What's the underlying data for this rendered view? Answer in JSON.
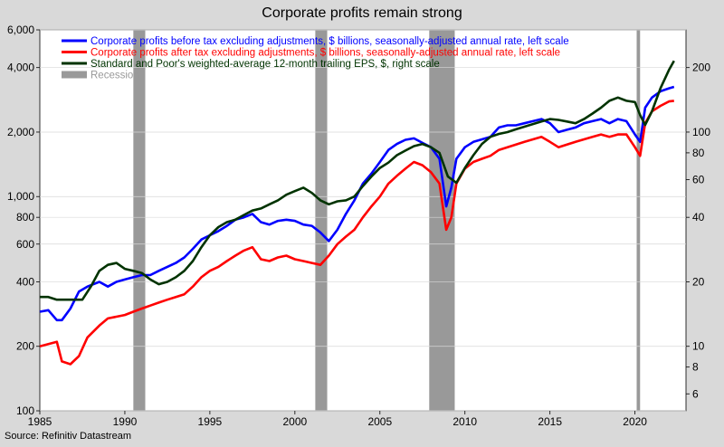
{
  "chart_data": {
    "type": "line",
    "title": "Corporate profits remain strong",
    "source": "Source: Refinitiv Datastream",
    "xlim": [
      1985,
      2023
    ],
    "x_ticks": [
      1985,
      1990,
      1995,
      2000,
      2005,
      2010,
      2015,
      2020
    ],
    "left_axis": {
      "scale": "log",
      "ylim": [
        100,
        6000
      ],
      "ticks": [
        100,
        200,
        400,
        600,
        800,
        1000,
        2000,
        4000,
        6000
      ],
      "tick_labels": [
        "100",
        "200",
        "400",
        "600",
        "800",
        "1,000",
        "2,000",
        "4,000",
        "6,000"
      ]
    },
    "right_axis": {
      "scale": "log",
      "ylim": [
        5,
        300
      ],
      "ticks": [
        6,
        8,
        10,
        20,
        40,
        60,
        80,
        100,
        200
      ],
      "tick_labels": [
        "6",
        "8",
        "10",
        "20",
        "40",
        "60",
        "80",
        "100",
        "200"
      ]
    },
    "recessions": [
      {
        "start": 1990.5,
        "end": 1991.2
      },
      {
        "start": 2001.2,
        "end": 2001.9
      },
      {
        "start": 2007.9,
        "end": 2009.4
      },
      {
        "start": 2020.1,
        "end": 2020.3
      }
    ],
    "series": [
      {
        "name": "Corporate profits before tax excluding adjustments, $ billions, seasonally-adjusted annual rate, left scale",
        "color": "#0000ff",
        "axis": "left",
        "x": [
          1985,
          1985.5,
          1986,
          1986.3,
          1986.8,
          1987.3,
          1987.8,
          1988.5,
          1989,
          1989.5,
          1990,
          1990.5,
          1991,
          1991.5,
          1992,
          1992.5,
          1993,
          1993.5,
          1994,
          1994.5,
          1995,
          1995.5,
          1996,
          1996.5,
          1997,
          1997.5,
          1998,
          1998.5,
          1999,
          1999.5,
          2000,
          2000.5,
          2001,
          2001.5,
          2002,
          2002.5,
          2003,
          2003.5,
          2004,
          2004.5,
          2005,
          2005.5,
          2006,
          2006.5,
          2007,
          2007.5,
          2008,
          2008.5,
          2008.9,
          2009.2,
          2009.5,
          2010,
          2010.5,
          2011,
          2011.5,
          2012,
          2012.5,
          2013,
          2013.5,
          2014,
          2014.5,
          2015,
          2015.5,
          2016,
          2016.5,
          2017,
          2017.5,
          2018,
          2018.5,
          2019,
          2019.5,
          2020,
          2020.3,
          2020.6,
          2021,
          2021.5,
          2022,
          2022.3
        ],
        "values": [
          290,
          295,
          265,
          265,
          300,
          360,
          380,
          400,
          380,
          400,
          410,
          420,
          430,
          430,
          450,
          470,
          490,
          520,
          570,
          630,
          660,
          690,
          730,
          780,
          800,
          830,
          760,
          740,
          770,
          780,
          770,
          740,
          730,
          680,
          620,
          700,
          830,
          960,
          1150,
          1280,
          1450,
          1650,
          1760,
          1840,
          1870,
          1780,
          1700,
          1500,
          900,
          1100,
          1500,
          1700,
          1800,
          1850,
          1900,
          2100,
          2150,
          2150,
          2200,
          2250,
          2300,
          2200,
          2000,
          2050,
          2100,
          2200,
          2250,
          2300,
          2200,
          2300,
          2250,
          1950,
          1800,
          2600,
          2900,
          3100,
          3200,
          3250
        ]
      },
      {
        "name": "Corporate profits after tax excluding adjustments, $ billions, seasonally-adjusted annual rate, left scale",
        "color": "#ff0000",
        "axis": "left",
        "x": [
          1985,
          1985.5,
          1986,
          1986.3,
          1986.8,
          1987.3,
          1987.8,
          1988.5,
          1989,
          1989.5,
          1990,
          1990.5,
          1991,
          1991.5,
          1992,
          1992.5,
          1993,
          1993.5,
          1994,
          1994.5,
          1995,
          1995.5,
          1996,
          1996.5,
          1997,
          1997.5,
          1998,
          1998.5,
          1999,
          1999.5,
          2000,
          2000.5,
          2001,
          2001.5,
          2002,
          2002.5,
          2003,
          2003.5,
          2004,
          2004.5,
          2005,
          2005.5,
          2006,
          2006.5,
          2007,
          2007.5,
          2008,
          2008.5,
          2008.9,
          2009.2,
          2009.5,
          2010,
          2010.5,
          2011,
          2011.5,
          2012,
          2012.5,
          2013,
          2013.5,
          2014,
          2014.5,
          2015,
          2015.5,
          2016,
          2016.5,
          2017,
          2017.5,
          2018,
          2018.5,
          2019,
          2019.5,
          2020,
          2020.3,
          2020.6,
          2021,
          2021.5,
          2022,
          2022.3
        ],
        "values": [
          200,
          205,
          210,
          170,
          165,
          180,
          220,
          250,
          270,
          275,
          280,
          290,
          300,
          310,
          320,
          330,
          340,
          350,
          380,
          420,
          450,
          470,
          500,
          530,
          560,
          580,
          510,
          500,
          520,
          530,
          510,
          500,
          490,
          480,
          530,
          600,
          650,
          700,
          800,
          900,
          1000,
          1150,
          1250,
          1350,
          1450,
          1400,
          1300,
          1150,
          700,
          800,
          1150,
          1350,
          1450,
          1500,
          1550,
          1650,
          1700,
          1750,
          1800,
          1850,
          1900,
          1800,
          1700,
          1750,
          1800,
          1850,
          1900,
          1950,
          1900,
          1950,
          1950,
          1700,
          1550,
          2200,
          2500,
          2650,
          2780,
          2800
        ]
      },
      {
        "name": "Standard and Poor's weighted-average 12-month trailing EPS, $, right scale",
        "color": "#003300",
        "axis": "right",
        "x": [
          1985,
          1985.5,
          1986,
          1986.5,
          1987,
          1987.5,
          1988,
          1988.5,
          1989,
          1989.5,
          1990,
          1990.5,
          1991,
          1991.5,
          1992,
          1992.5,
          1993,
          1993.5,
          1994,
          1994.5,
          1995,
          1995.5,
          1996,
          1996.5,
          1997,
          1997.5,
          1998,
          1998.5,
          1999,
          1999.5,
          2000,
          2000.5,
          2001,
          2001.5,
          2002,
          2002.5,
          2003,
          2003.5,
          2004,
          2004.5,
          2005,
          2005.5,
          2006,
          2006.5,
          2007,
          2007.5,
          2008,
          2008.5,
          2009,
          2009.5,
          2010,
          2010.5,
          2011,
          2011.5,
          2012,
          2012.5,
          2013,
          2013.5,
          2014,
          2014.5,
          2015,
          2015.5,
          2016,
          2016.5,
          2017,
          2017.5,
          2018,
          2018.5,
          2019,
          2019.5,
          2020,
          2020.3,
          2020.6,
          2021,
          2021.5,
          2022,
          2022.3
        ],
        "values": [
          17,
          17,
          16.5,
          16.5,
          16.5,
          16.5,
          19,
          22.5,
          24,
          24.5,
          23,
          22.5,
          22,
          20.5,
          19.5,
          20,
          21,
          22.5,
          25,
          29,
          33,
          36,
          38,
          39,
          41,
          43,
          44,
          46,
          48,
          51,
          53,
          55,
          52,
          48,
          46,
          47.5,
          48,
          50,
          56,
          62,
          68,
          72,
          78,
          82,
          86,
          88,
          85,
          80,
          62,
          58,
          68,
          78,
          88,
          95,
          98,
          100,
          103,
          106,
          109,
          112,
          115,
          114,
          112,
          110,
          115,
          122,
          130,
          140,
          145,
          140,
          138,
          120,
          108,
          125,
          160,
          195,
          215
        ]
      }
    ]
  }
}
